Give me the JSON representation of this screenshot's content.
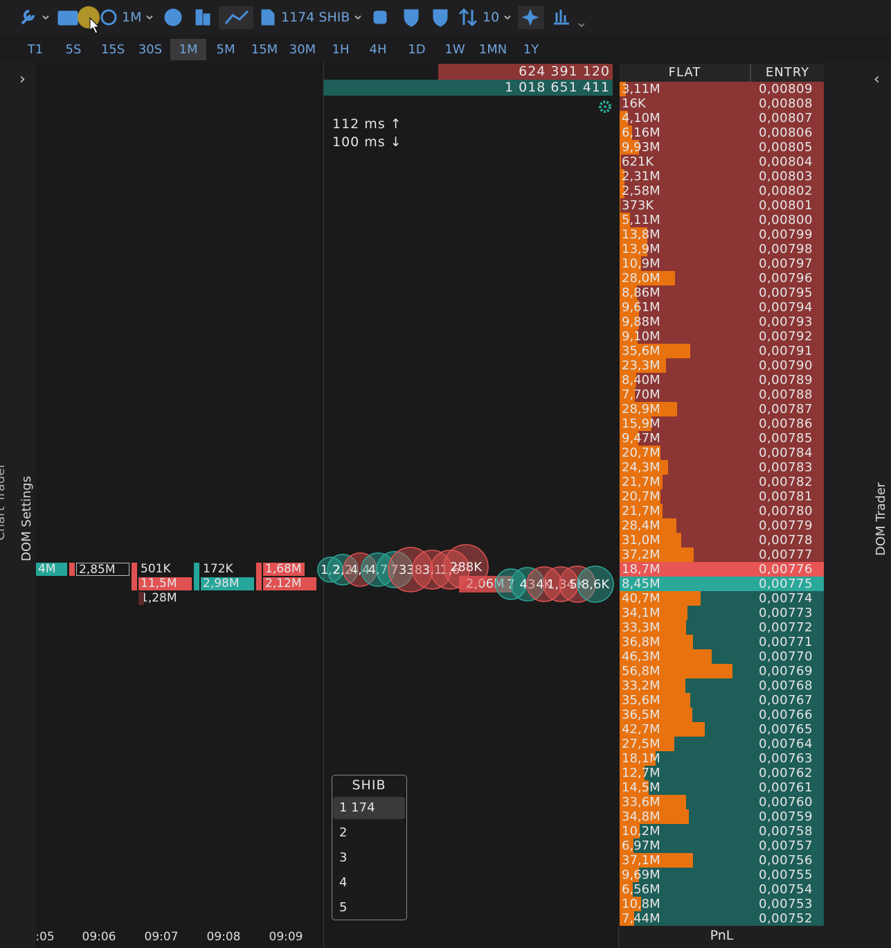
{
  "toolbar": {
    "timeframe": "1M",
    "instrument": "1174 SHIB",
    "depth": "10"
  },
  "timeframes": [
    "T1",
    "5S",
    "15S",
    "30S",
    "1M",
    "5M",
    "15M",
    "30M",
    "1H",
    "4H",
    "1D",
    "1W",
    "1MN",
    "1Y"
  ],
  "side_labels": {
    "left_chart": "Chart Trader",
    "left_dom": "DOM Settings",
    "right": "DOM Trader"
  },
  "footprint": {
    "cells": [
      {
        "text": "4M",
        "kind": "buy"
      },
      {
        "text": "2,85M",
        "kind": "outline"
      },
      {
        "text": "501K",
        "kind": "plain"
      },
      {
        "text": "11,5M",
        "kind": "sell"
      },
      {
        "text": "1,28M",
        "kind": "plain"
      },
      {
        "text": "172K",
        "kind": "plain"
      },
      {
        "text": "2,98M",
        "kind": "buy"
      },
      {
        "text": "1,68M",
        "kind": "sell"
      },
      {
        "text": "2,12M",
        "kind": "sell"
      }
    ]
  },
  "time_axis": [
    ":05",
    "09:06",
    "09:07",
    "09:08",
    "09:09"
  ],
  "tape": {
    "ask_total": "624 391 120",
    "bid_total": "1 018 651 411",
    "latency_up": "112 ms",
    "latency_down": "100 ms",
    "trade_label": "2,06M",
    "bubbles": [
      {
        "label": "1,2",
        "side": "buy"
      },
      {
        "label": "2,2",
        "side": "buy"
      },
      {
        "label": "4,4",
        "side": "sell"
      },
      {
        "label": "4,7",
        "side": "buy"
      },
      {
        "label": "7",
        "side": "buy"
      },
      {
        "label": "338",
        "side": "sell"
      },
      {
        "label": "3,1",
        "side": "sell"
      },
      {
        "label": "1,6",
        "side": "sell"
      },
      {
        "label": "288K",
        "side": "sell"
      },
      {
        "label": "7",
        "side": "buy"
      },
      {
        "label": "43",
        "side": "buy"
      },
      {
        "label": "4K",
        "side": "sell"
      },
      {
        "label": "1,34",
        "side": "sell"
      },
      {
        "label": "5K",
        "side": "sell"
      },
      {
        "label": "8,6K",
        "side": "buy"
      }
    ]
  },
  "instrument_menu": {
    "title": "SHIB",
    "items": [
      "1 174",
      "2",
      "3",
      "4",
      "5"
    ]
  },
  "dom": {
    "headers": [
      "FLAT",
      "ENTRY"
    ],
    "footer": "PnL",
    "asks": [
      {
        "volume": "3,11M",
        "price": "0,00809"
      },
      {
        "volume": "16K",
        "price": "0,00808"
      },
      {
        "volume": "4,10M",
        "price": "0,00807"
      },
      {
        "volume": "6,16M",
        "price": "0,00806"
      },
      {
        "volume": "9,93M",
        "price": "0,00805"
      },
      {
        "volume": "621K",
        "price": "0,00804"
      },
      {
        "volume": "2,31M",
        "price": "0,00803"
      },
      {
        "volume": "2,58M",
        "price": "0,00802"
      },
      {
        "volume": "373K",
        "price": "0,00801"
      },
      {
        "volume": "5,11M",
        "price": "0,00800"
      },
      {
        "volume": "13,8M",
        "price": "0,00799"
      },
      {
        "volume": "13,9M",
        "price": "0,00798"
      },
      {
        "volume": "10,9M",
        "price": "0,00797"
      },
      {
        "volume": "28,0M",
        "price": "0,00796"
      },
      {
        "volume": "8,86M",
        "price": "0,00795"
      },
      {
        "volume": "9,61M",
        "price": "0,00794"
      },
      {
        "volume": "9,88M",
        "price": "0,00793"
      },
      {
        "volume": "9,10M",
        "price": "0,00792"
      },
      {
        "volume": "35,6M",
        "price": "0,00791"
      },
      {
        "volume": "23,3M",
        "price": "0,00790"
      },
      {
        "volume": "8,40M",
        "price": "0,00789"
      },
      {
        "volume": "7,70M",
        "price": "0,00788"
      },
      {
        "volume": "28,9M",
        "price": "0,00787"
      },
      {
        "volume": "15,9M",
        "price": "0,00786"
      },
      {
        "volume": "9,47M",
        "price": "0,00785"
      },
      {
        "volume": "20,7M",
        "price": "0,00784"
      },
      {
        "volume": "24,3M",
        "price": "0,00783"
      },
      {
        "volume": "21,7M",
        "price": "0,00782"
      },
      {
        "volume": "20,7M",
        "price": "0,00781"
      },
      {
        "volume": "21,7M",
        "price": "0,00780"
      },
      {
        "volume": "28,4M",
        "price": "0,00779"
      },
      {
        "volume": "31,0M",
        "price": "0,00778"
      },
      {
        "volume": "37,2M",
        "price": "0,00777"
      },
      {
        "volume": "18,7M",
        "price": "0,00776"
      }
    ],
    "bids": [
      {
        "volume": "8,45M",
        "price": "0,00775"
      },
      {
        "volume": "40,7M",
        "price": "0,00774"
      },
      {
        "volume": "34,1M",
        "price": "0,00773"
      },
      {
        "volume": "33,3M",
        "price": "0,00772"
      },
      {
        "volume": "36,8M",
        "price": "0,00771"
      },
      {
        "volume": "46,3M",
        "price": "0,00770"
      },
      {
        "volume": "56,8M",
        "price": "0,00769"
      },
      {
        "volume": "33,2M",
        "price": "0,00768"
      },
      {
        "volume": "35,6M",
        "price": "0,00767"
      },
      {
        "volume": "36,5M",
        "price": "0,00766"
      },
      {
        "volume": "42,7M",
        "price": "0,00765"
      },
      {
        "volume": "27,5M",
        "price": "0,00764"
      },
      {
        "volume": "18,1M",
        "price": "0,00763"
      },
      {
        "volume": "12,7M",
        "price": "0,00762"
      },
      {
        "volume": "14,5M",
        "price": "0,00761"
      },
      {
        "volume": "33,6M",
        "price": "0,00760"
      },
      {
        "volume": "34,8M",
        "price": "0,00759"
      },
      {
        "volume": "10,2M",
        "price": "0,00758"
      },
      {
        "volume": "6,97M",
        "price": "0,00757"
      },
      {
        "volume": "37,1M",
        "price": "0,00756"
      },
      {
        "volume": "9,69M",
        "price": "0,00755"
      },
      {
        "volume": "6,56M",
        "price": "0,00754"
      },
      {
        "volume": "10,8M",
        "price": "0,00753"
      },
      {
        "volume": "7,44M",
        "price": "0,00752"
      }
    ]
  }
}
